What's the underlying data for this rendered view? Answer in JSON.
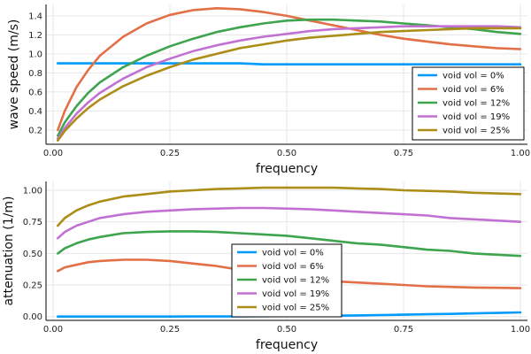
{
  "chart_data": [
    {
      "type": "line",
      "xlabel": "frequency",
      "ylabel": "wave speed (m/s)",
      "xlim": [
        0,
        1
      ],
      "ylim": [
        0.05,
        1.52
      ],
      "xticks": [
        "0.00",
        "0.25",
        "0.50",
        "0.75",
        "1.00"
      ],
      "yticks": [
        "0.2",
        "0.4",
        "0.6",
        "0.8",
        "1.0",
        "1.2",
        "1.4"
      ],
      "grid": true,
      "legend_position": "bottom-right",
      "x": [
        0.01,
        0.025,
        0.05,
        0.075,
        0.1,
        0.15,
        0.2,
        0.25,
        0.3,
        0.35,
        0.4,
        0.45,
        0.5,
        0.55,
        0.6,
        0.65,
        0.7,
        0.75,
        0.8,
        0.85,
        0.9,
        0.95,
        1.0
      ],
      "series": [
        {
          "name": "void vol = 0%",
          "color": "#009AFA",
          "values": [
            0.9,
            0.9,
            0.9,
            0.9,
            0.9,
            0.9,
            0.9,
            0.9,
            0.9,
            0.9,
            0.9,
            0.89,
            0.89,
            0.89,
            0.89,
            0.89,
            0.89,
            0.89,
            0.89,
            0.89,
            0.89,
            0.89,
            0.89
          ]
        },
        {
          "name": "void vol = 6%",
          "color": "#E36F47",
          "values": [
            0.2,
            0.4,
            0.65,
            0.83,
            0.98,
            1.18,
            1.32,
            1.41,
            1.46,
            1.48,
            1.47,
            1.44,
            1.4,
            1.35,
            1.3,
            1.25,
            1.2,
            1.16,
            1.13,
            1.1,
            1.08,
            1.06,
            1.05
          ]
        },
        {
          "name": "void vol = 12%",
          "color": "#3EA44E",
          "values": [
            0.14,
            0.28,
            0.45,
            0.59,
            0.7,
            0.86,
            0.98,
            1.08,
            1.16,
            1.23,
            1.28,
            1.32,
            1.35,
            1.36,
            1.36,
            1.35,
            1.34,
            1.32,
            1.3,
            1.28,
            1.26,
            1.23,
            1.21
          ]
        },
        {
          "name": "void vol = 19%",
          "color": "#C271D2",
          "values": [
            0.11,
            0.22,
            0.37,
            0.49,
            0.59,
            0.74,
            0.86,
            0.95,
            1.03,
            1.09,
            1.14,
            1.18,
            1.21,
            1.24,
            1.26,
            1.27,
            1.28,
            1.29,
            1.29,
            1.29,
            1.29,
            1.29,
            1.28
          ]
        },
        {
          "name": "void vol = 25%",
          "color": "#AC8D18",
          "values": [
            0.09,
            0.19,
            0.32,
            0.43,
            0.52,
            0.66,
            0.77,
            0.86,
            0.94,
            1.0,
            1.06,
            1.1,
            1.14,
            1.17,
            1.19,
            1.21,
            1.23,
            1.24,
            1.25,
            1.26,
            1.27,
            1.27,
            1.27
          ]
        }
      ]
    },
    {
      "type": "line",
      "xlabel": "frequency",
      "ylabel": "attenuation (1/m)",
      "xlim": [
        0,
        1
      ],
      "ylim": [
        -0.03,
        1.07
      ],
      "xticks": [
        "0.00",
        "0.25",
        "0.50",
        "0.75",
        "1.00"
      ],
      "yticks": [
        "0.00",
        "0.25",
        "0.50",
        "0.75",
        "1.00"
      ],
      "grid": true,
      "legend_position": "center",
      "x": [
        0.01,
        0.025,
        0.05,
        0.075,
        0.1,
        0.15,
        0.2,
        0.25,
        0.3,
        0.35,
        0.4,
        0.45,
        0.5,
        0.55,
        0.6,
        0.65,
        0.7,
        0.75,
        0.8,
        0.85,
        0.9,
        0.95,
        1.0
      ],
      "series": [
        {
          "name": "void vol = 0%",
          "color": "#009AFA",
          "values": [
            0.0,
            0.0,
            0.0,
            0.0,
            0.0,
            0.0,
            0.0,
            0.0,
            0.001,
            0.001,
            0.002,
            0.003,
            0.004,
            0.005,
            0.007,
            0.009,
            0.012,
            0.015,
            0.018,
            0.021,
            0.025,
            0.029,
            0.033
          ]
        },
        {
          "name": "void vol = 6%",
          "color": "#E36F47",
          "values": [
            0.36,
            0.39,
            0.41,
            0.43,
            0.44,
            0.45,
            0.45,
            0.44,
            0.42,
            0.4,
            0.37,
            0.35,
            0.32,
            0.3,
            0.28,
            0.27,
            0.26,
            0.25,
            0.24,
            0.235,
            0.23,
            0.228,
            0.225
          ]
        },
        {
          "name": "void vol = 12%",
          "color": "#3EA44E",
          "values": [
            0.5,
            0.54,
            0.58,
            0.61,
            0.63,
            0.66,
            0.67,
            0.675,
            0.675,
            0.67,
            0.66,
            0.65,
            0.64,
            0.62,
            0.6,
            0.58,
            0.57,
            0.55,
            0.53,
            0.52,
            0.5,
            0.49,
            0.48
          ]
        },
        {
          "name": "void vol = 19%",
          "color": "#C271D2",
          "values": [
            0.62,
            0.67,
            0.72,
            0.75,
            0.78,
            0.81,
            0.83,
            0.84,
            0.85,
            0.855,
            0.86,
            0.86,
            0.855,
            0.85,
            0.84,
            0.83,
            0.82,
            0.81,
            0.8,
            0.78,
            0.77,
            0.76,
            0.75
          ]
        },
        {
          "name": "void vol = 25%",
          "color": "#AC8D18",
          "values": [
            0.72,
            0.78,
            0.84,
            0.88,
            0.91,
            0.95,
            0.97,
            0.99,
            1.0,
            1.01,
            1.015,
            1.02,
            1.02,
            1.02,
            1.02,
            1.015,
            1.01,
            1.0,
            0.995,
            0.99,
            0.98,
            0.975,
            0.97
          ]
        }
      ]
    }
  ]
}
